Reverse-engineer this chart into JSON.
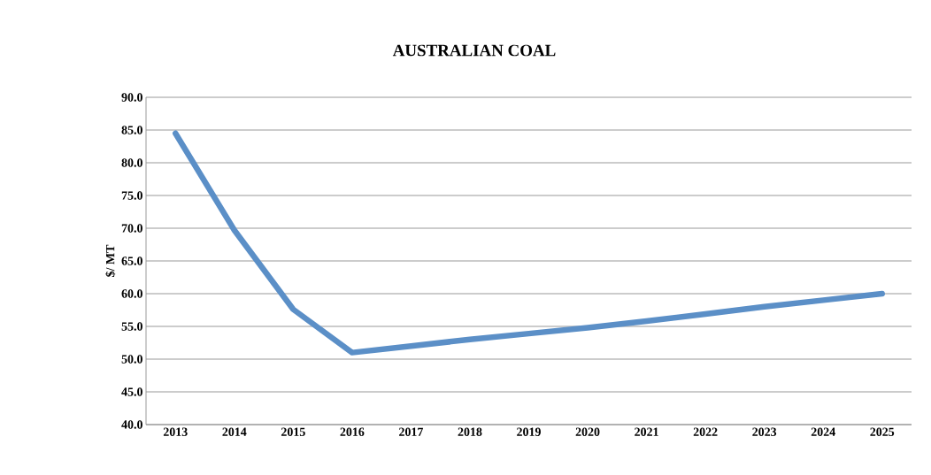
{
  "chart_data": {
    "type": "line",
    "title": "AUSTRALIAN COAL",
    "ylabel": "$/ MT",
    "categories": [
      "2013",
      "2014",
      "2015",
      "2016",
      "2017",
      "2018",
      "2019",
      "2020",
      "2021",
      "2022",
      "2023",
      "2024",
      "2025"
    ],
    "series": [
      {
        "color": "#5b8fc7",
        "values": [
          84.5,
          69.7,
          57.6,
          51.0,
          52.0,
          53.0,
          53.9,
          54.8,
          55.8,
          56.9,
          58.0,
          59.0,
          60.0
        ]
      }
    ],
    "ylim": [
      40,
      90
    ],
    "yticks": [
      {
        "value": 40,
        "label": "40.0"
      },
      {
        "value": 45,
        "label": "45.0"
      },
      {
        "value": 50,
        "label": "50.0"
      },
      {
        "value": 55,
        "label": "55.0"
      },
      {
        "value": 60,
        "label": "60.0"
      },
      {
        "value": 65,
        "label": "65.0"
      },
      {
        "value": 70,
        "label": "70.0"
      },
      {
        "value": 75,
        "label": "75.0"
      },
      {
        "value": 80,
        "label": "80.0"
      },
      {
        "value": 85,
        "label": "85.0"
      },
      {
        "value": 90,
        "label": "90.0"
      }
    ],
    "grid": "y",
    "marker": "none",
    "line_style": "solid"
  }
}
